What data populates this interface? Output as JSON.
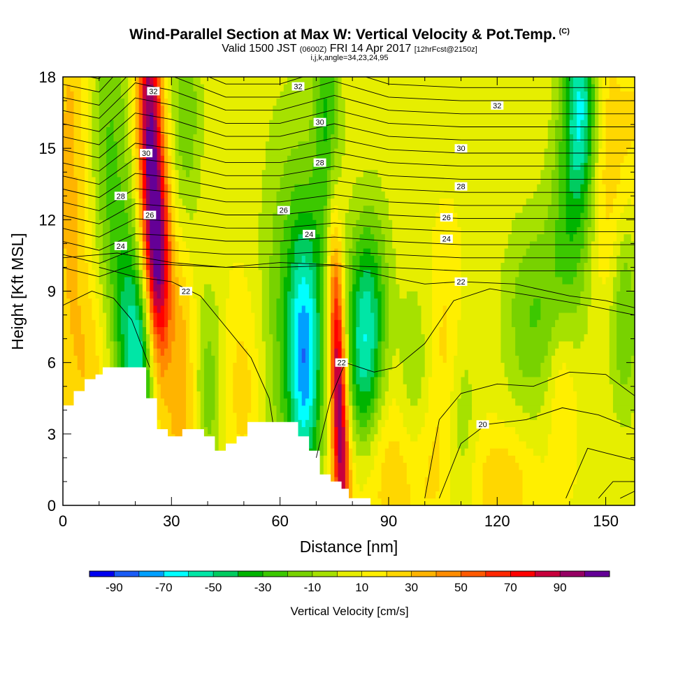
{
  "header": {
    "title": "Wind-Parallel Section at Max W: Vertical Velocity & Pot.Temp.",
    "copyright": "(C)",
    "valid_a": "Valid 1500 JST",
    "valid_b": "(0600Z)",
    "valid_c": "FRI 14 Apr 2017",
    "valid_d": "[12hrFcst@2150z]",
    "indices": "i,j,k,angle=34,23,24,95"
  },
  "chart_data": {
    "type": "heatmap",
    "title": "Wind-Parallel Section at Max W: Vertical Velocity & Pot.Temp.",
    "xlabel": "Distance [nm]",
    "ylabel": "Height [Kft MSL]",
    "xlim": [
      0,
      158
    ],
    "ylim": [
      0,
      18
    ],
    "xticks": [
      0,
      30,
      60,
      90,
      120,
      150
    ],
    "yticks": [
      0,
      3,
      6,
      9,
      12,
      15,
      18
    ],
    "colorbar": {
      "label": "Vertical Velocity [cm/s]",
      "tick_labels": [
        "-90",
        "-70",
        "-50",
        "-30",
        "-10",
        "10",
        "30",
        "50",
        "70",
        "90"
      ],
      "bins": [
        -100,
        -90,
        -80,
        -70,
        -60,
        -50,
        -40,
        -30,
        -20,
        -10,
        0,
        10,
        20,
        30,
        40,
        50,
        60,
        70,
        80,
        90,
        100
      ],
      "colors": [
        "#0000f0",
        "#1a5cf5",
        "#00a0ff",
        "#00ffff",
        "#00e6a6",
        "#00cc60",
        "#00b400",
        "#3cc800",
        "#78d200",
        "#a6e100",
        "#e6ee00",
        "#ffef00",
        "#ffd700",
        "#ffb400",
        "#ff8c00",
        "#ff5a00",
        "#ff2800",
        "#ff0000",
        "#c8003c",
        "#960064",
        "#640096"
      ]
    },
    "contour_labels": [
      {
        "value": "32",
        "x": 25,
        "y": 17.4
      },
      {
        "value": "32",
        "x": 65,
        "y": 17.6
      },
      {
        "value": "32",
        "x": 120,
        "y": 16.8
      },
      {
        "value": "30",
        "x": 23,
        "y": 14.8
      },
      {
        "value": "30",
        "x": 71,
        "y": 16.1
      },
      {
        "value": "30",
        "x": 110,
        "y": 15.0
      },
      {
        "value": "28",
        "x": 16,
        "y": 13.0
      },
      {
        "value": "28",
        "x": 71,
        "y": 14.4
      },
      {
        "value": "28",
        "x": 110,
        "y": 13.4
      },
      {
        "value": "26",
        "x": 24,
        "y": 12.2
      },
      {
        "value": "26",
        "x": 61,
        "y": 12.4
      },
      {
        "value": "26",
        "x": 106,
        "y": 12.1
      },
      {
        "value": "24",
        "x": 16,
        "y": 10.9
      },
      {
        "value": "24",
        "x": 68,
        "y": 11.4
      },
      {
        "value": "24",
        "x": 106,
        "y": 11.2
      },
      {
        "value": "22",
        "x": 34,
        "y": 9.0
      },
      {
        "value": "22",
        "x": 77,
        "y": 6.0
      },
      {
        "value": "22",
        "x": 110,
        "y": 9.4
      },
      {
        "value": "20",
        "x": 116,
        "y": 3.4
      }
    ]
  }
}
